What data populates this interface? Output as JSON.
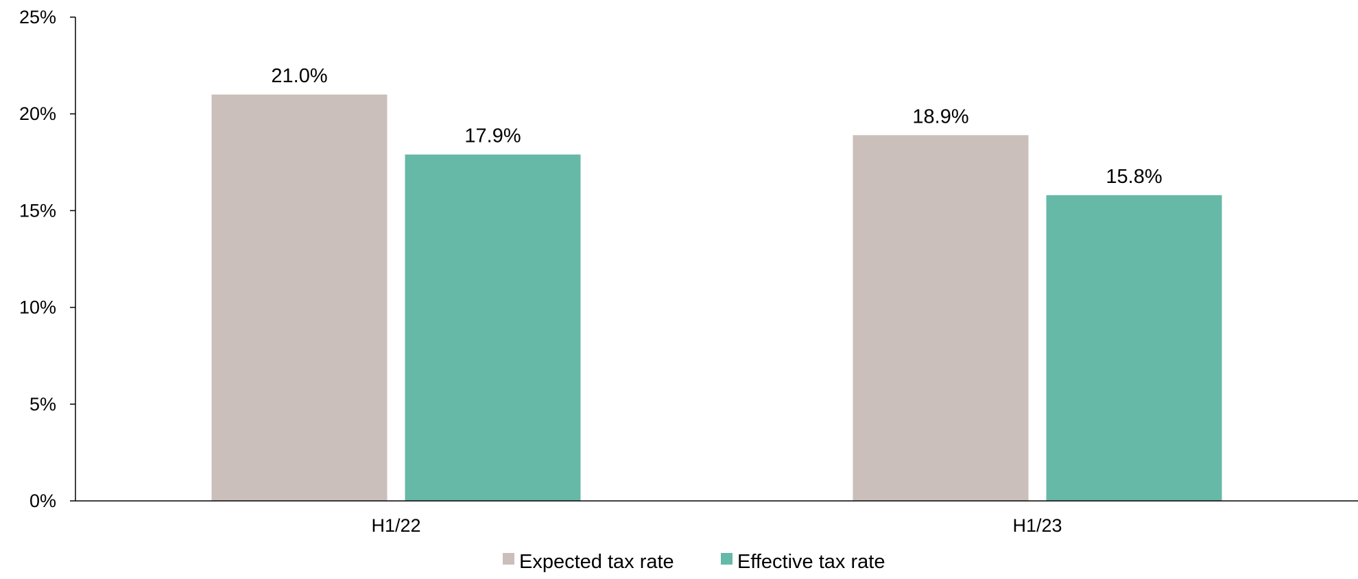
{
  "chart_data": {
    "type": "bar",
    "categories": [
      "H1/22",
      "H1/23"
    ],
    "series": [
      {
        "name": "Expected tax rate",
        "values": [
          21.0,
          18.9
        ],
        "labels": [
          "21.0%",
          "18.9%"
        ],
        "color": "#cbbfbb"
      },
      {
        "name": "Effective tax rate",
        "values": [
          17.9,
          15.8
        ],
        "labels": [
          "17.9%",
          "15.8%"
        ],
        "color": "#66b8a7"
      }
    ],
    "title": "",
    "xlabel": "",
    "ylabel": "",
    "ylim": [
      0,
      25
    ],
    "yticks": [
      0,
      5,
      10,
      15,
      20,
      25
    ],
    "ytick_labels": [
      "0%",
      "5%",
      "10%",
      "15%",
      "20%",
      "25%"
    ],
    "grid": false,
    "legend": "bottom"
  }
}
